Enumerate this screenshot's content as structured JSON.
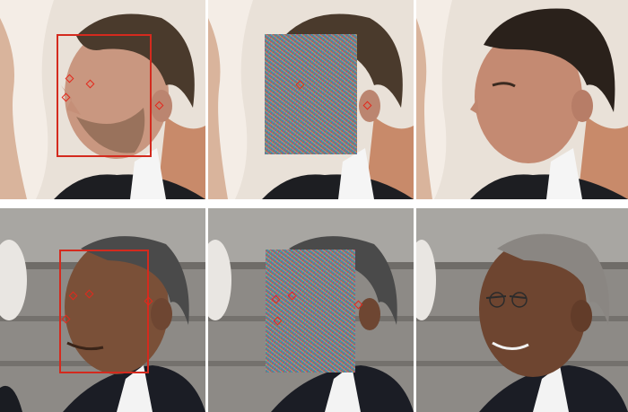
{
  "figure": {
    "rows": [
      {
        "subject": "man-with-beard",
        "panels": [
          "original-with-detection-box",
          "noise-masked-face",
          "swapped-face"
        ]
      },
      {
        "subject": "man-in-suit",
        "panels": [
          "original-with-detection-box",
          "noise-masked-face",
          "swapped-face"
        ]
      }
    ],
    "colors": {
      "box": "#d42a1e",
      "keypoint": "#e3281c",
      "separator": "#ffffff"
    }
  }
}
